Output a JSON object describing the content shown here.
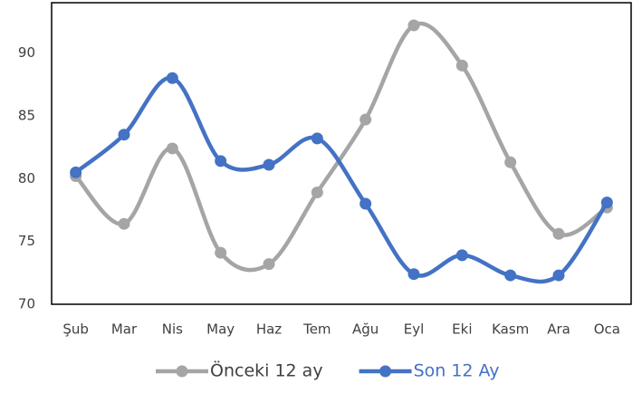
{
  "chart_data": {
    "type": "line",
    "categories": [
      "Şub",
      "Mar",
      "Nis",
      "May",
      "Haz",
      "Tem",
      "Ağu",
      "Eyl",
      "Eki",
      "Kasm",
      "Ara",
      "Oca"
    ],
    "series": [
      {
        "name": "Önceki 12 ay",
        "color": "#a5a5a5",
        "values": [
          80.2,
          76.4,
          82.4,
          74.1,
          73.2,
          78.9,
          84.7,
          92.2,
          89.0,
          81.3,
          75.6,
          77.7
        ]
      },
      {
        "name": "Son 12 Ay",
        "color": "#4472c4",
        "values": [
          80.5,
          83.5,
          88.0,
          81.4,
          81.1,
          83.2,
          78.0,
          72.4,
          73.9,
          72.3,
          72.3,
          78.1
        ]
      }
    ],
    "ylim": [
      70,
      94
    ],
    "yticks": [
      70,
      75,
      80,
      85,
      90
    ],
    "smooth": true,
    "legend": "bottom"
  }
}
